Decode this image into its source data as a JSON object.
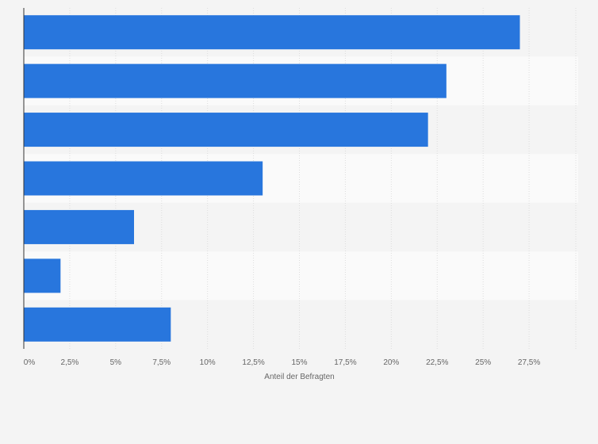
{
  "chart_data": {
    "type": "bar",
    "orientation": "horizontal",
    "categories": [
      "",
      "",
      "",
      "",
      "",
      "",
      ""
    ],
    "values": [
      27,
      23,
      22,
      13,
      6,
      2,
      8
    ],
    "title": "",
    "xlabel": "Anteil der Befragten",
    "ylabel": "",
    "xlim": [
      0,
      30
    ],
    "xticks": [
      0,
      2.5,
      5,
      7.5,
      10,
      12.5,
      15,
      17.5,
      20,
      22.5,
      25,
      27.5
    ],
    "xtick_labels": [
      "0%",
      "2,5%",
      "5%",
      "7,5%",
      "10%",
      "12,5%",
      "15%",
      "17,5%",
      "20%",
      "22,5%",
      "25%",
      "27,5%"
    ],
    "grid": true,
    "legend": "none"
  },
  "colors": {
    "bar": "#2876dd",
    "background": "#f4f4f4",
    "band_light": "#fafafa",
    "band_dark": "#f4f4f4",
    "gridline": "#dddddd",
    "axis": "#333333",
    "text": "#666666"
  }
}
